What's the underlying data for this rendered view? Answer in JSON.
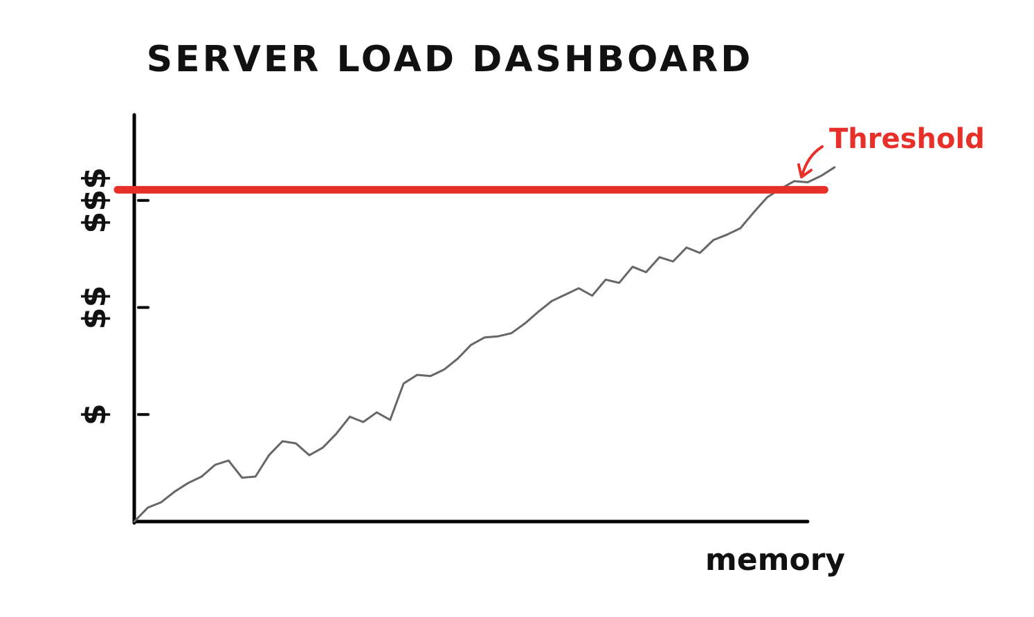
{
  "chart_data": {
    "type": "line",
    "title": "SERVER LOAD DASHBOARD",
    "xlabel": "memory",
    "ylabel": "",
    "y_tick_labels": [
      "$",
      "$$",
      "$$$"
    ],
    "y_tick_values": [
      1,
      2,
      3
    ],
    "xlim": [
      0,
      100
    ],
    "ylim": [
      0,
      3.8
    ],
    "grid": false,
    "threshold": {
      "label": "Threshold",
      "value": 3.1,
      "color": "#e8302a"
    },
    "series": [
      {
        "line_color": "#666666",
        "x": [
          0,
          2,
          4,
          6,
          8,
          10,
          12,
          14,
          16,
          18,
          20,
          22,
          24,
          26,
          28,
          30,
          32,
          34,
          36,
          38,
          40,
          42,
          44,
          46,
          48,
          50,
          52,
          54,
          56,
          58,
          60,
          62,
          64,
          66,
          68,
          70,
          72,
          74,
          76,
          78,
          80,
          82,
          84,
          86,
          88,
          90,
          92,
          94,
          96,
          98,
          100,
          102,
          104
        ],
        "y": [
          0.0,
          0.13,
          0.18,
          0.28,
          0.36,
          0.42,
          0.53,
          0.57,
          0.41,
          0.42,
          0.62,
          0.75,
          0.73,
          0.62,
          0.69,
          0.82,
          0.98,
          0.93,
          1.02,
          0.95,
          1.29,
          1.37,
          1.36,
          1.42,
          1.52,
          1.65,
          1.72,
          1.73,
          1.76,
          1.85,
          1.96,
          2.06,
          2.12,
          2.18,
          2.11,
          2.26,
          2.23,
          2.38,
          2.33,
          2.47,
          2.43,
          2.56,
          2.51,
          2.63,
          2.68,
          2.74,
          2.89,
          3.03,
          3.11,
          3.18,
          3.17,
          3.23,
          3.31
        ]
      }
    ]
  }
}
